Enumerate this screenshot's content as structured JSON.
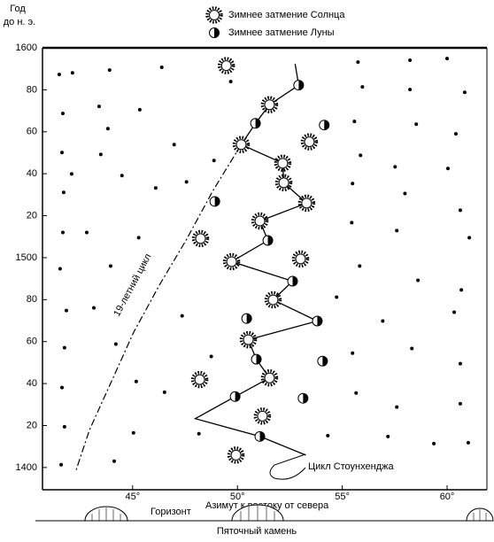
{
  "chart_data": {
    "type": "scatter",
    "y_label_lines": [
      "Год",
      "до н. э."
    ],
    "x_label": "Азимут к востоку от севера",
    "xlim": [
      40.7,
      61.9
    ],
    "ylim": [
      1389.4,
      1600
    ],
    "xticks": [
      {
        "value": 45,
        "label": "45°"
      },
      {
        "value": 50,
        "label": "50°"
      },
      {
        "value": 55,
        "label": "55°"
      },
      {
        "value": 60,
        "label": "60°"
      }
    ],
    "yticks": [
      1400,
      {
        "value": 1420,
        "label": "20"
      },
      {
        "value": 1440,
        "label": "40"
      },
      {
        "value": 1460,
        "label": "60"
      },
      {
        "value": 1480,
        "label": "80"
      },
      1500,
      {
        "value": 1520,
        "label": "20"
      },
      {
        "value": 1540,
        "label": "40"
      },
      {
        "value": 1560,
        "label": "60"
      },
      {
        "value": 1580,
        "label": "80"
      },
      1600
    ],
    "series": [
      {
        "name": "Зимнее затмение Солнца",
        "marker": "sun",
        "color": "#000000",
        "x": [
          49.47,
          51.53,
          50.18,
          52.16,
          52.21,
          53.43,
          53.3,
          51.07,
          48.24,
          49.72,
          53.01,
          51.7,
          50.52,
          51.53,
          48.2,
          51.19,
          49.93
        ],
        "values": [
          1591.5,
          1572.9,
          1553.9,
          1545.0,
          1535.7,
          1555.2,
          1526.0,
          1517.5,
          1509.1,
          1498.1,
          1499.4,
          1479.9,
          1460.9,
          1442.7,
          1441.9,
          1424.5,
          1405.9
        ]
      },
      {
        "name": "Зимнее затмение Луны",
        "marker": "moon",
        "color": "#000000",
        "x": [
          52.92,
          50.86,
          54.14,
          48.92,
          51.45,
          52.63,
          50.44,
          53.81,
          50.9,
          54.06,
          49.89,
          53.13,
          51.07
        ],
        "values": [
          1582.2,
          1564.0,
          1563.2,
          1526.8,
          1508.2,
          1488.8,
          1471.0,
          1469.8,
          1451.6,
          1450.7,
          1433.8,
          1433.0,
          1414.8
        ]
      },
      {
        "marker": "dot",
        "color": "#000000",
        "x": [
          41.5,
          42.13,
          43.9,
          46.39,
          41.67,
          43.4,
          45.34,
          43.82,
          46.98,
          41.63,
          43.48,
          42.09,
          44.49,
          41.71,
          46.1,
          41.67,
          42.81,
          45.29,
          41.54,
          43.95,
          41.84,
          43.15,
          47.36,
          41.75,
          44.2,
          41.63,
          45.17,
          41.75,
          45.04,
          44.12,
          41.59,
          55.75,
          58.23,
          60.0,
          55.96,
          58.23,
          60.84,
          55.58,
          58.53,
          60.42,
          55.87,
          57.52,
          60.04,
          55.49,
          57.99,
          60.63,
          55.45,
          57.6,
          61.06,
          55.83,
          58.61,
          60.68,
          54.73,
          56.93,
          60.34,
          55.49,
          58.32,
          60.63,
          55.66,
          57.6,
          60.63,
          54.31,
          57.18,
          59.37,
          61.01,
          49.68,
          48.88,
          47.57,
          48.75,
          46.52,
          48.16
        ],
        "values": [
          1587.3,
          1588.1,
          1589.4,
          1590.7,
          1568.7,
          1572.1,
          1570.5,
          1561.5,
          1553.9,
          1550.1,
          1549.2,
          1539.9,
          1539.1,
          1531.1,
          1533.2,
          1512.0,
          1512.0,
          1509.5,
          1494.7,
          1496.0,
          1474.8,
          1476.1,
          1472.3,
          1457.1,
          1458.8,
          1438.1,
          1441.0,
          1419.4,
          1416.5,
          1403.0,
          1401.3,
          1593.2,
          1594.1,
          1594.9,
          1581.4,
          1580.1,
          1578.8,
          1564.9,
          1563.6,
          1559.0,
          1548.8,
          1543.3,
          1542.5,
          1535.3,
          1530.6,
          1522.6,
          1516.7,
          1512.9,
          1509.5,
          1496.0,
          1489.2,
          1484.6,
          1481.2,
          1469.8,
          1474.0,
          1454.5,
          1456.7,
          1449.5,
          1435.5,
          1428.8,
          1430.4,
          1415.2,
          1414.8,
          1411.4,
          1411.8,
          1583.9,
          1546.3,
          1536.1,
          1452.9,
          1435.9,
          1416.1
        ]
      }
    ],
    "lines": [
      {
        "label": "Цикл Стоунхенджа",
        "style": "solid",
        "x": [
          52.75,
          52.92,
          51.53,
          50.86,
          50.18,
          52.16,
          52.21,
          53.3,
          51.07,
          51.45,
          49.72,
          52.63,
          51.7,
          53.81,
          50.52,
          50.9,
          51.53,
          49.89,
          47.99,
          51.07,
          53.26
        ],
        "values": [
          1592.4,
          1582.2,
          1572.9,
          1564.0,
          1553.9,
          1545.0,
          1535.7,
          1526.0,
          1517.5,
          1508.2,
          1498.1,
          1488.8,
          1479.9,
          1469.8,
          1460.9,
          1451.6,
          1442.7,
          1433.8,
          1423.3,
          1414.8,
          1405.9
        ]
      },
      {
        "label": "19-летний цикл",
        "style": "dashdot",
        "x": [
          50.18,
          48.83,
          47.57,
          46.31,
          45.04,
          43.99,
          42.94,
          42.3
        ],
        "values": [
          1553.9,
          1531.9,
          1508.7,
          1487.5,
          1464.3,
          1441.0,
          1417.8,
          1398.7
        ]
      }
    ],
    "horizon_label": "Горизонт",
    "stone_label": "Пяточный камень"
  }
}
